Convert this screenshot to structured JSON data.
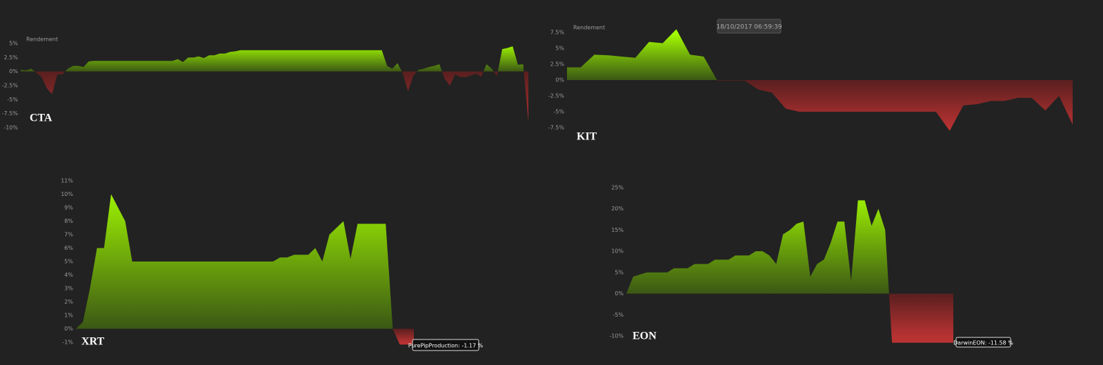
{
  "chart_data": [
    {
      "type": "area",
      "title": "CTA",
      "y_label": "Rendement",
      "color": "#a6ff00",
      "negative_color": "#b83232",
      "ylim": [
        -10,
        5
      ],
      "yticks": [
        {
          "value": 5,
          "label": "5%"
        },
        {
          "value": 2.5,
          "label": "2.5%"
        },
        {
          "value": 0,
          "label": "0%"
        },
        {
          "value": -2.5,
          "label": "-2.5%"
        },
        {
          "value": -5,
          "label": "-5%"
        },
        {
          "value": -7.5,
          "label": "-7.5%"
        },
        {
          "value": -10,
          "label": "-10%"
        }
      ],
      "values": [
        0.3,
        0.2,
        0.5,
        -0.2,
        -1,
        -3,
        -4,
        -0.5,
        -0.5,
        0.5,
        1,
        1,
        0.8,
        1.8,
        1.9,
        1.9,
        1.9,
        1.9,
        1.9,
        1.9,
        1.9,
        1.9,
        1.9,
        1.9,
        1.9,
        1.9,
        1.9,
        1.9,
        1.9,
        1.9,
        2.2,
        1.7,
        2.5,
        2.5,
        2.7,
        2.4,
        2.9,
        2.9,
        3.2,
        3.2,
        3.5,
        3.6,
        3.8,
        3.8,
        3.8,
        3.8,
        3.8,
        3.8,
        3.8,
        3.8,
        3.8,
        3.8,
        3.8,
        3.8,
        3.8,
        3.8,
        3.8,
        3.8,
        3.8,
        3.8,
        3.8,
        3.8,
        3.8,
        3.8,
        3.8,
        3.8,
        3.8,
        3.8,
        3.8,
        3.8,
        1,
        0.5,
        1.5,
        -0.3,
        -3.5,
        -0.8,
        0.3,
        0.5,
        0.8,
        1,
        1.3,
        -1.3,
        -2.5,
        -0.5,
        -1,
        -1,
        -0.7,
        -0.4,
        -0.9,
        1.3,
        0.5,
        -0.8,
        4,
        4.2,
        4.5,
        1.2,
        1.3,
        -9
      ]
    },
    {
      "type": "area",
      "title": "KIT",
      "y_label": "Rendement",
      "color": "#a6ff00",
      "negative_color": "#b83232",
      "ylim": [
        -7.5,
        7.5
      ],
      "yticks": [
        {
          "value": 7.5,
          "label": "7.5%"
        },
        {
          "value": 5,
          "label": "5%"
        },
        {
          "value": 2.5,
          "label": "2.5%"
        },
        {
          "value": 0,
          "label": "0%"
        },
        {
          "value": -2.5,
          "label": "-2.5%"
        },
        {
          "value": -5,
          "label": "-5%"
        },
        {
          "value": -7.5,
          "label": "-7.5%"
        }
      ],
      "tooltip": "18/10/2017 06:59:39",
      "values": [
        2,
        2,
        4,
        3.9,
        3.7,
        3.5,
        6,
        5.8,
        8,
        4,
        3.7,
        -0.1,
        -0.1,
        -0.1,
        -1.5,
        -2,
        -4.5,
        -5,
        -5,
        -5,
        -5,
        -5,
        -5,
        -5,
        -5,
        -5,
        -5,
        -5,
        -8,
        -4,
        -3.8,
        -3.3,
        -3.3,
        -2.8,
        -2.8,
        -4.8,
        -2.5,
        -7
      ]
    },
    {
      "type": "area",
      "title": "XRT",
      "color": "#a6ff00",
      "negative_color": "#b83232",
      "ylim": [
        -1,
        11
      ],
      "yticks": [
        {
          "value": 11,
          "label": "11%"
        },
        {
          "value": 10,
          "label": "10%"
        },
        {
          "value": 9,
          "label": "9%"
        },
        {
          "value": 8,
          "label": "8%"
        },
        {
          "value": 7,
          "label": "7%"
        },
        {
          "value": 6,
          "label": "6%"
        },
        {
          "value": 5,
          "label": "5%"
        },
        {
          "value": 4,
          "label": "4%"
        },
        {
          "value": 3,
          "label": "3%"
        },
        {
          "value": 2,
          "label": "2%"
        },
        {
          "value": 1,
          "label": "1%"
        },
        {
          "value": 0,
          "label": "0%"
        },
        {
          "value": -1,
          "label": "-1%"
        }
      ],
      "tooltip": "PurePipProduction: -1.17 %",
      "values": [
        0,
        0.5,
        3,
        6,
        6,
        10,
        9,
        8,
        5,
        5,
        5,
        5,
        5,
        5,
        5,
        5,
        5,
        5,
        5,
        5,
        5,
        5,
        5,
        5,
        5,
        5,
        5,
        5,
        5,
        5.3,
        5.3,
        5.5,
        5.5,
        5.5,
        6,
        5,
        7,
        7.5,
        8,
        5.2,
        7.8,
        7.8,
        7.8,
        7.8,
        7.8,
        0,
        -1.17,
        -1.17,
        -1.17
      ]
    },
    {
      "type": "area",
      "title": "EON",
      "color": "#a6ff00",
      "negative_color": "#b83232",
      "ylim": [
        -10,
        25
      ],
      "yticks": [
        {
          "value": 25,
          "label": "25%"
        },
        {
          "value": 20,
          "label": "20%"
        },
        {
          "value": 15,
          "label": "15%"
        },
        {
          "value": 10,
          "label": "10%"
        },
        {
          "value": 5,
          "label": "5%"
        },
        {
          "value": 0,
          "label": "0%"
        },
        {
          "value": -5,
          "label": "-5%"
        },
        {
          "value": -10,
          "label": "-10%"
        }
      ],
      "tooltip": "DarwinEON: -11.58 %",
      "values": [
        0,
        4,
        4.5,
        5,
        5,
        5,
        5,
        6,
        6,
        6,
        7,
        7,
        7,
        8,
        8,
        8,
        9,
        9,
        9,
        10,
        10,
        9,
        7,
        14,
        15,
        16.5,
        17,
        4,
        7,
        8,
        12,
        17,
        17,
        3,
        22,
        22,
        16,
        20,
        15,
        -11.58,
        -11.58,
        -11.58,
        -11.58,
        -11.58,
        -11.58,
        -11.58,
        -11.58,
        -11.58,
        -11.58
      ]
    }
  ]
}
